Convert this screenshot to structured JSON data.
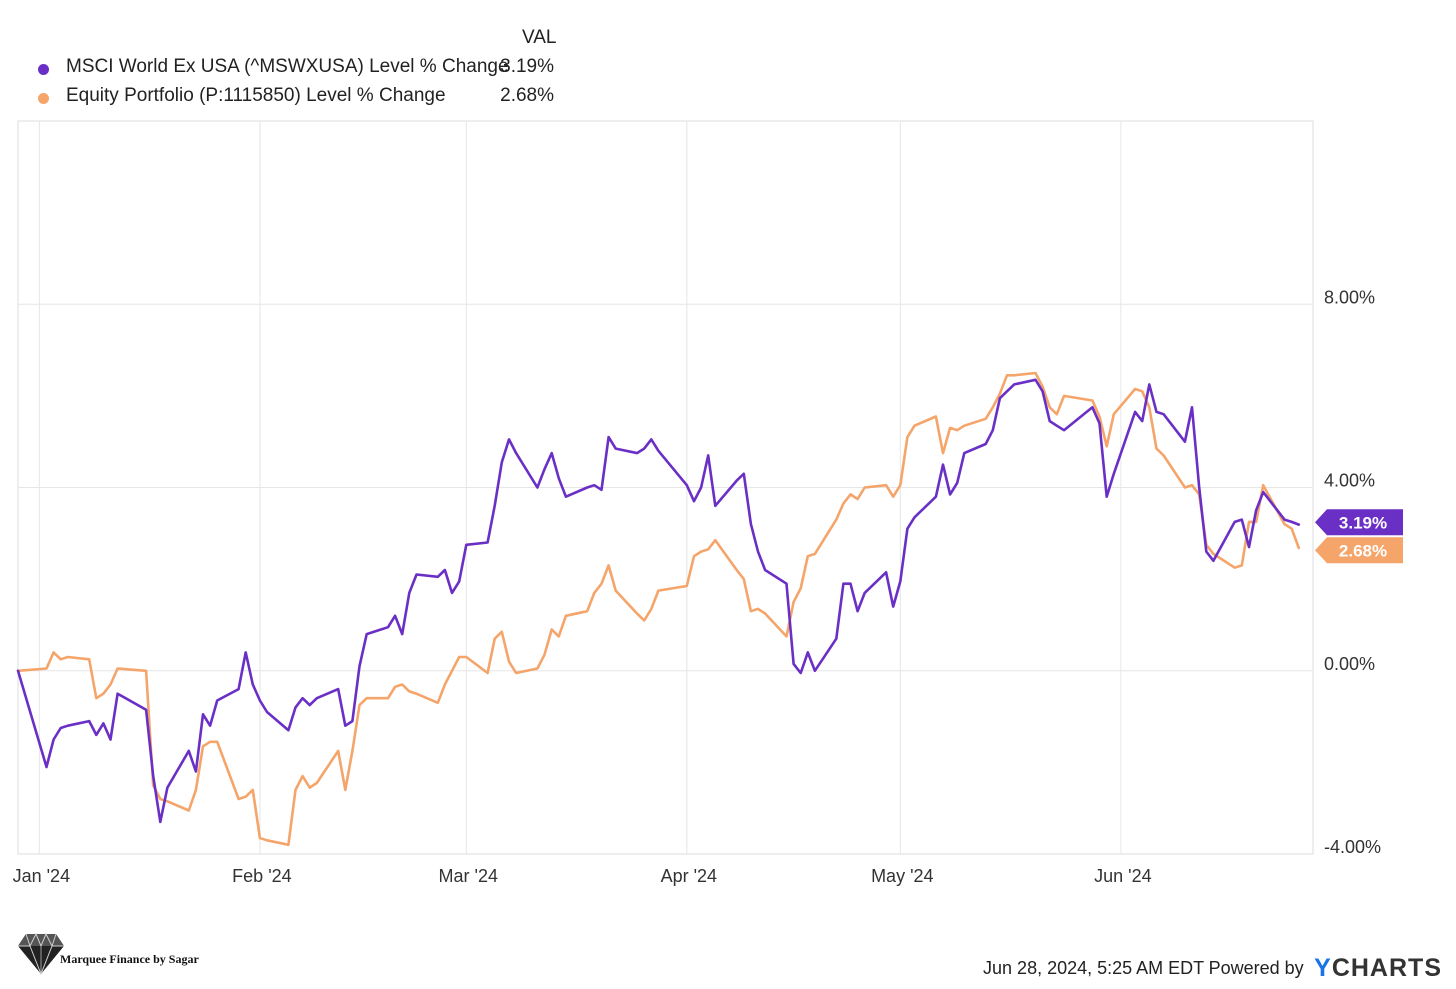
{
  "legend": {
    "header": "VAL"
  },
  "chart_data": {
    "type": "line",
    "title": "",
    "xlabel": "",
    "ylabel": "",
    "ylim": [
      -4,
      12
    ],
    "y_ticks": [
      -4,
      0,
      4,
      8
    ],
    "y_tick_labels": [
      "-4.00%",
      "0.00%",
      "4.00%",
      "8.00%"
    ],
    "x_ticks": [
      "2024-01-01",
      "2024-02-01",
      "2024-03-01",
      "2024-04-01",
      "2024-05-01",
      "2024-06-01"
    ],
    "x_tick_labels": [
      "Jan '24",
      "Feb '24",
      "Mar '24",
      "Apr '24",
      "May '24",
      "Jun '24"
    ],
    "xlim": [
      "2023-12-29",
      "2024-06-28"
    ],
    "grid": true,
    "legend_position": "top-left",
    "series": [
      {
        "name": "MSCI World Ex USA (^MSWXUSA) Level % Change",
        "color": "#6a2fc5",
        "last_value_label": "3.19%",
        "points": [
          [
            "2023-12-29",
            0.0
          ],
          [
            "2024-01-02",
            -2.1
          ],
          [
            "2024-01-03",
            -1.5
          ],
          [
            "2024-01-04",
            -1.25
          ],
          [
            "2024-01-05",
            -1.2
          ],
          [
            "2024-01-08",
            -1.1
          ],
          [
            "2024-01-09",
            -1.4
          ],
          [
            "2024-01-10",
            -1.15
          ],
          [
            "2024-01-11",
            -1.5
          ],
          [
            "2024-01-12",
            -0.5
          ],
          [
            "2024-01-16",
            -0.85
          ],
          [
            "2024-01-17",
            -2.3
          ],
          [
            "2024-01-18",
            -3.3
          ],
          [
            "2024-01-19",
            -2.55
          ],
          [
            "2024-01-22",
            -1.75
          ],
          [
            "2024-01-23",
            -2.2
          ],
          [
            "2024-01-24",
            -0.95
          ],
          [
            "2024-01-25",
            -1.2
          ],
          [
            "2024-01-26",
            -0.65
          ],
          [
            "2024-01-29",
            -0.4
          ],
          [
            "2024-01-30",
            0.4
          ],
          [
            "2024-01-31",
            -0.3
          ],
          [
            "2024-02-01",
            -0.65
          ],
          [
            "2024-02-02",
            -0.9
          ],
          [
            "2024-02-05",
            -1.3
          ],
          [
            "2024-02-06",
            -0.8
          ],
          [
            "2024-02-07",
            -0.6
          ],
          [
            "2024-02-08",
            -0.75
          ],
          [
            "2024-02-09",
            -0.6
          ],
          [
            "2024-02-12",
            -0.4
          ],
          [
            "2024-02-13",
            -1.2
          ],
          [
            "2024-02-14",
            -1.1
          ],
          [
            "2024-02-15",
            0.1
          ],
          [
            "2024-02-16",
            0.8
          ],
          [
            "2024-02-19",
            0.95
          ],
          [
            "2024-02-20",
            1.2
          ],
          [
            "2024-02-21",
            0.8
          ],
          [
            "2024-02-22",
            1.7
          ],
          [
            "2024-02-23",
            2.1
          ],
          [
            "2024-02-26",
            2.05
          ],
          [
            "2024-02-27",
            2.2
          ],
          [
            "2024-02-28",
            1.7
          ],
          [
            "2024-02-29",
            1.95
          ],
          [
            "2024-03-01",
            2.75
          ],
          [
            "2024-03-04",
            2.8
          ],
          [
            "2024-03-05",
            3.6
          ],
          [
            "2024-03-06",
            4.55
          ],
          [
            "2024-03-07",
            5.05
          ],
          [
            "2024-03-08",
            4.75
          ],
          [
            "2024-03-11",
            4.0
          ],
          [
            "2024-03-12",
            4.4
          ],
          [
            "2024-03-13",
            4.75
          ],
          [
            "2024-03-14",
            4.2
          ],
          [
            "2024-03-15",
            3.8
          ],
          [
            "2024-03-18",
            4.0
          ],
          [
            "2024-03-19",
            4.05
          ],
          [
            "2024-03-20",
            3.95
          ],
          [
            "2024-03-21",
            5.1
          ],
          [
            "2024-03-22",
            4.85
          ],
          [
            "2024-03-25",
            4.75
          ],
          [
            "2024-03-26",
            4.85
          ],
          [
            "2024-03-27",
            5.05
          ],
          [
            "2024-03-28",
            4.8
          ],
          [
            "2024-04-01",
            4.05
          ],
          [
            "2024-04-02",
            3.7
          ],
          [
            "2024-04-03",
            4.0
          ],
          [
            "2024-04-04",
            4.7
          ],
          [
            "2024-04-05",
            3.6
          ],
          [
            "2024-04-08",
            4.15
          ],
          [
            "2024-04-09",
            4.3
          ],
          [
            "2024-04-10",
            3.2
          ],
          [
            "2024-04-11",
            2.6
          ],
          [
            "2024-04-12",
            2.2
          ],
          [
            "2024-04-15",
            1.9
          ],
          [
            "2024-04-16",
            0.15
          ],
          [
            "2024-04-17",
            -0.05
          ],
          [
            "2024-04-18",
            0.4
          ],
          [
            "2024-04-19",
            0.0
          ],
          [
            "2024-04-22",
            0.7
          ],
          [
            "2024-04-23",
            1.9
          ],
          [
            "2024-04-24",
            1.9
          ],
          [
            "2024-04-25",
            1.3
          ],
          [
            "2024-04-26",
            1.7
          ],
          [
            "2024-04-29",
            2.15
          ],
          [
            "2024-04-30",
            1.4
          ],
          [
            "2024-05-01",
            1.95
          ],
          [
            "2024-05-02",
            3.1
          ],
          [
            "2024-05-03",
            3.35
          ],
          [
            "2024-05-06",
            3.8
          ],
          [
            "2024-05-07",
            4.5
          ],
          [
            "2024-05-08",
            3.85
          ],
          [
            "2024-05-09",
            4.1
          ],
          [
            "2024-05-10",
            4.75
          ],
          [
            "2024-05-13",
            4.95
          ],
          [
            "2024-05-14",
            5.25
          ],
          [
            "2024-05-15",
            5.95
          ],
          [
            "2024-05-16",
            6.1
          ],
          [
            "2024-05-17",
            6.25
          ],
          [
            "2024-05-20",
            6.35
          ],
          [
            "2024-05-21",
            6.1
          ],
          [
            "2024-05-22",
            5.45
          ],
          [
            "2024-05-23",
            5.35
          ],
          [
            "2024-05-24",
            5.25
          ],
          [
            "2024-05-28",
            5.75
          ],
          [
            "2024-05-29",
            5.4
          ],
          [
            "2024-05-30",
            3.8
          ],
          [
            "2024-05-31",
            4.3
          ],
          [
            "2024-06-03",
            5.65
          ],
          [
            "2024-06-04",
            5.45
          ],
          [
            "2024-06-05",
            6.25
          ],
          [
            "2024-06-06",
            5.65
          ],
          [
            "2024-06-07",
            5.6
          ],
          [
            "2024-06-10",
            5.0
          ],
          [
            "2024-06-11",
            5.75
          ],
          [
            "2024-06-12",
            4.0
          ],
          [
            "2024-06-13",
            2.6
          ],
          [
            "2024-06-14",
            2.4
          ],
          [
            "2024-06-17",
            3.25
          ],
          [
            "2024-06-18",
            3.3
          ],
          [
            "2024-06-19",
            2.7
          ],
          [
            "2024-06-20",
            3.5
          ],
          [
            "2024-06-21",
            3.9
          ],
          [
            "2024-06-24",
            3.3
          ],
          [
            "2024-06-25",
            3.25
          ],
          [
            "2024-06-26",
            3.19
          ]
        ]
      },
      {
        "name": "Equity Portfolio (P:1115850) Level % Change",
        "color": "#f5a46a",
        "last_value_label": "2.68%",
        "points": [
          [
            "2023-12-29",
            0.0
          ],
          [
            "2024-01-02",
            0.05
          ],
          [
            "2024-01-03",
            0.4
          ],
          [
            "2024-01-04",
            0.25
          ],
          [
            "2024-01-05",
            0.3
          ],
          [
            "2024-01-08",
            0.25
          ],
          [
            "2024-01-09",
            -0.6
          ],
          [
            "2024-01-10",
            -0.5
          ],
          [
            "2024-01-11",
            -0.3
          ],
          [
            "2024-01-12",
            0.05
          ],
          [
            "2024-01-16",
            0.0
          ],
          [
            "2024-01-17",
            -2.5
          ],
          [
            "2024-01-18",
            -2.8
          ],
          [
            "2024-01-19",
            -2.85
          ],
          [
            "2024-01-22",
            -3.05
          ],
          [
            "2024-01-23",
            -2.6
          ],
          [
            "2024-01-24",
            -1.65
          ],
          [
            "2024-01-25",
            -1.55
          ],
          [
            "2024-01-26",
            -1.55
          ],
          [
            "2024-01-29",
            -2.8
          ],
          [
            "2024-01-30",
            -2.75
          ],
          [
            "2024-01-31",
            -2.6
          ],
          [
            "2024-02-01",
            -3.65
          ],
          [
            "2024-02-02",
            -3.7
          ],
          [
            "2024-02-05",
            -3.8
          ],
          [
            "2024-02-06",
            -2.6
          ],
          [
            "2024-02-07",
            -2.3
          ],
          [
            "2024-02-08",
            -2.55
          ],
          [
            "2024-02-09",
            -2.45
          ],
          [
            "2024-02-12",
            -1.75
          ],
          [
            "2024-02-13",
            -2.6
          ],
          [
            "2024-02-14",
            -1.75
          ],
          [
            "2024-02-15",
            -0.75
          ],
          [
            "2024-02-16",
            -0.6
          ],
          [
            "2024-02-19",
            -0.6
          ],
          [
            "2024-02-20",
            -0.35
          ],
          [
            "2024-02-21",
            -0.3
          ],
          [
            "2024-02-22",
            -0.45
          ],
          [
            "2024-02-23",
            -0.5
          ],
          [
            "2024-02-26",
            -0.7
          ],
          [
            "2024-02-27",
            -0.3
          ],
          [
            "2024-02-28",
            0.0
          ],
          [
            "2024-02-29",
            0.3
          ],
          [
            "2024-03-01",
            0.3
          ],
          [
            "2024-03-04",
            -0.05
          ],
          [
            "2024-03-05",
            0.7
          ],
          [
            "2024-03-06",
            0.85
          ],
          [
            "2024-03-07",
            0.2
          ],
          [
            "2024-03-08",
            -0.05
          ],
          [
            "2024-03-11",
            0.05
          ],
          [
            "2024-03-12",
            0.35
          ],
          [
            "2024-03-13",
            0.9
          ],
          [
            "2024-03-14",
            0.75
          ],
          [
            "2024-03-15",
            1.2
          ],
          [
            "2024-03-18",
            1.3
          ],
          [
            "2024-03-19",
            1.7
          ],
          [
            "2024-03-20",
            1.9
          ],
          [
            "2024-03-21",
            2.3
          ],
          [
            "2024-03-22",
            1.75
          ],
          [
            "2024-03-25",
            1.25
          ],
          [
            "2024-03-26",
            1.1
          ],
          [
            "2024-03-27",
            1.35
          ],
          [
            "2024-03-28",
            1.75
          ],
          [
            "2024-04-01",
            1.85
          ],
          [
            "2024-04-02",
            2.5
          ],
          [
            "2024-04-03",
            2.6
          ],
          [
            "2024-04-04",
            2.65
          ],
          [
            "2024-04-05",
            2.85
          ],
          [
            "2024-04-08",
            2.2
          ],
          [
            "2024-04-09",
            2.0
          ],
          [
            "2024-04-10",
            1.3
          ],
          [
            "2024-04-11",
            1.35
          ],
          [
            "2024-04-12",
            1.25
          ],
          [
            "2024-04-15",
            0.75
          ],
          [
            "2024-04-16",
            1.5
          ],
          [
            "2024-04-17",
            1.8
          ],
          [
            "2024-04-18",
            2.5
          ],
          [
            "2024-04-19",
            2.55
          ],
          [
            "2024-04-22",
            3.3
          ],
          [
            "2024-04-23",
            3.65
          ],
          [
            "2024-04-24",
            3.85
          ],
          [
            "2024-04-25",
            3.75
          ],
          [
            "2024-04-26",
            4.0
          ],
          [
            "2024-04-29",
            4.05
          ],
          [
            "2024-04-30",
            3.8
          ],
          [
            "2024-05-01",
            4.05
          ],
          [
            "2024-05-02",
            5.1
          ],
          [
            "2024-05-03",
            5.35
          ],
          [
            "2024-05-06",
            5.55
          ],
          [
            "2024-05-07",
            4.75
          ],
          [
            "2024-05-08",
            5.3
          ],
          [
            "2024-05-09",
            5.25
          ],
          [
            "2024-05-10",
            5.35
          ],
          [
            "2024-05-13",
            5.5
          ],
          [
            "2024-05-14",
            5.75
          ],
          [
            "2024-05-15",
            6.05
          ],
          [
            "2024-05-16",
            6.45
          ],
          [
            "2024-05-17",
            6.45
          ],
          [
            "2024-05-20",
            6.5
          ],
          [
            "2024-05-21",
            6.2
          ],
          [
            "2024-05-22",
            5.75
          ],
          [
            "2024-05-23",
            5.6
          ],
          [
            "2024-05-24",
            6.0
          ],
          [
            "2024-05-28",
            5.9
          ],
          [
            "2024-05-29",
            5.55
          ],
          [
            "2024-05-30",
            4.9
          ],
          [
            "2024-05-31",
            5.6
          ],
          [
            "2024-06-03",
            6.15
          ],
          [
            "2024-06-04",
            6.1
          ],
          [
            "2024-06-05",
            5.75
          ],
          [
            "2024-06-06",
            4.85
          ],
          [
            "2024-06-07",
            4.7
          ],
          [
            "2024-06-10",
            4.0
          ],
          [
            "2024-06-11",
            4.05
          ],
          [
            "2024-06-12",
            3.85
          ],
          [
            "2024-06-13",
            2.75
          ],
          [
            "2024-06-14",
            2.55
          ],
          [
            "2024-06-17",
            2.25
          ],
          [
            "2024-06-18",
            2.3
          ],
          [
            "2024-06-19",
            3.25
          ],
          [
            "2024-06-20",
            3.25
          ],
          [
            "2024-06-21",
            4.05
          ],
          [
            "2024-06-24",
            3.2
          ],
          [
            "2024-06-25",
            3.1
          ],
          [
            "2024-06-26",
            2.68
          ]
        ]
      }
    ]
  },
  "branding": {
    "watermark_text": "Marquee Finance by Sagar",
    "diamond_icon": "diamond-icon"
  },
  "footer": {
    "timestamp": "Jun 28, 2024, 5:25 AM EDT",
    "powered_by": "Powered by",
    "logo_y": "Y",
    "logo_rest": "CHARTS"
  }
}
